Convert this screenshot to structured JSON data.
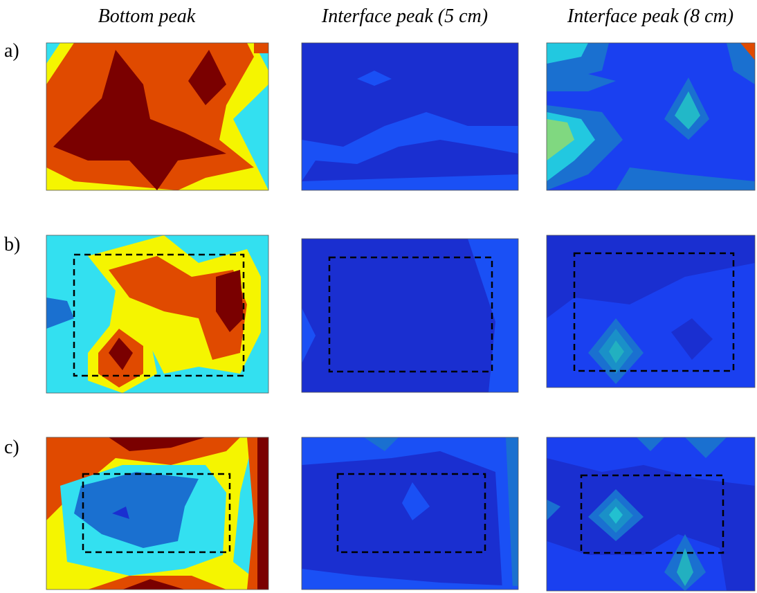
{
  "columns": [
    "Bottom peak",
    "Interface peak (5 cm)",
    "Interface peak (8 cm)"
  ],
  "rows": [
    "a)",
    "b)",
    "c)"
  ]
}
